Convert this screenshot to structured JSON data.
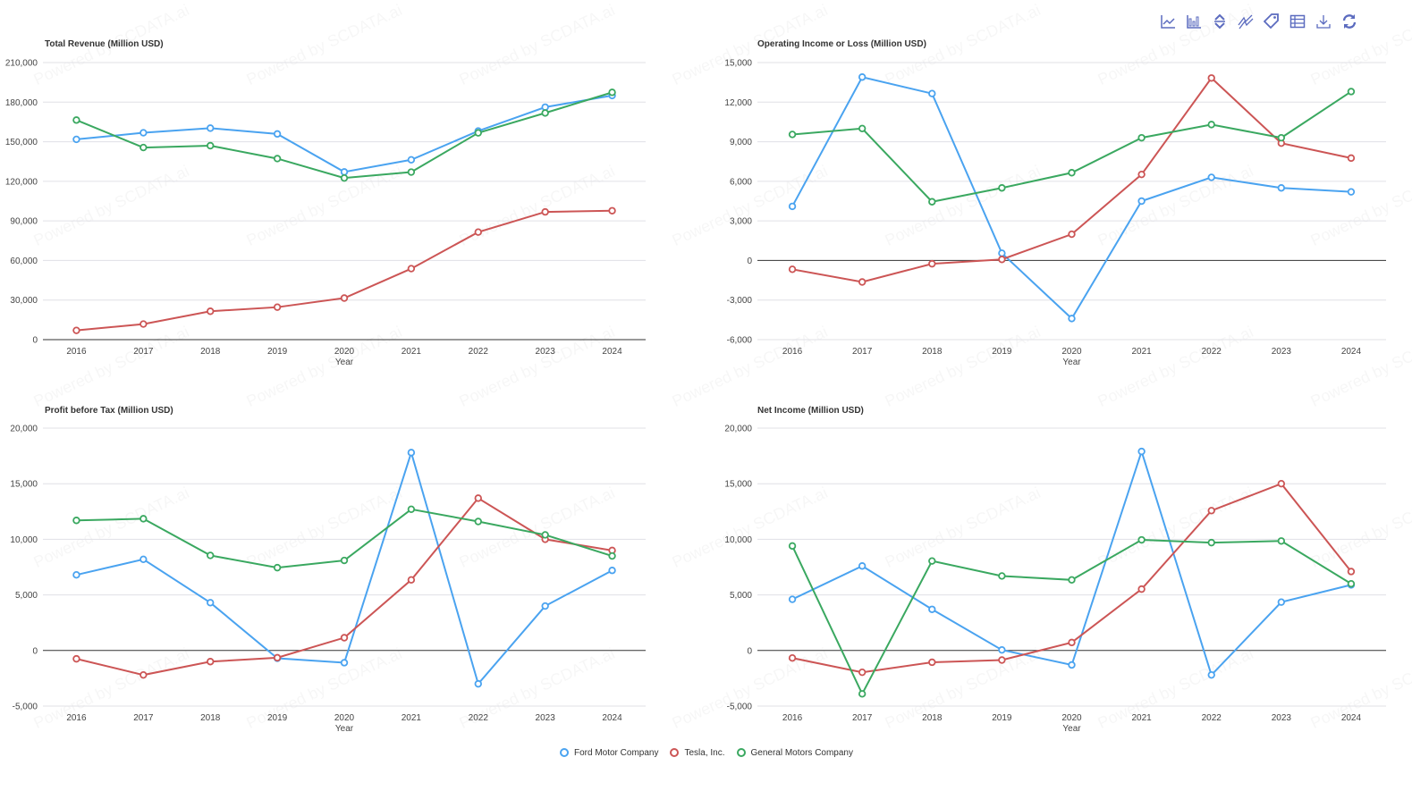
{
  "toolbar": {
    "icons": [
      "line-chart-icon",
      "bar-chart-icon",
      "sort-icon",
      "multi-line-icon",
      "tag-icon",
      "table-icon",
      "download-icon",
      "refresh-icon"
    ],
    "color": "#5b6bbf"
  },
  "watermark": "Powered by SCDATA.ai",
  "legend": [
    {
      "name": "Ford Motor Company",
      "color": "#4aa3f0"
    },
    {
      "name": "Tesla, Inc.",
      "color": "#cc5555"
    },
    {
      "name": "General Motors Company",
      "color": "#3aa860"
    }
  ],
  "chart_data": [
    {
      "type": "line",
      "title": "Total Revenue (Million USD)",
      "xlabel": "Year",
      "ylabel": "",
      "categories": [
        "2016",
        "2017",
        "2018",
        "2019",
        "2020",
        "2021",
        "2022",
        "2023",
        "2024"
      ],
      "ylim": [
        0,
        210000
      ],
      "yticks": [
        0,
        30000,
        60000,
        90000,
        120000,
        150000,
        180000,
        210000
      ],
      "ytick_labels": [
        "0",
        "30,000",
        "60,000",
        "90,000",
        "120,000",
        "150,000",
        "180,000",
        "210,000"
      ],
      "grid": true,
      "legend": "bottom-center",
      "series": [
        {
          "name": "Ford Motor Company",
          "values": [
            151800,
            156800,
            160300,
            155900,
            127100,
            136300,
            158100,
            176200,
            185000
          ]
        },
        {
          "name": "Tesla, Inc.",
          "values": [
            7000,
            11800,
            21500,
            24600,
            31500,
            53800,
            81500,
            96800,
            97700
          ]
        },
        {
          "name": "General Motors Company",
          "values": [
            166400,
            145600,
            147000,
            137200,
            122500,
            127000,
            156700,
            171800,
            187400
          ]
        }
      ]
    },
    {
      "type": "line",
      "title": "Operating Income or Loss (Million USD)",
      "xlabel": "Year",
      "ylabel": "",
      "categories": [
        "2016",
        "2017",
        "2018",
        "2019",
        "2020",
        "2021",
        "2022",
        "2023",
        "2024"
      ],
      "ylim": [
        -6000,
        15000
      ],
      "yticks": [
        -6000,
        -3000,
        0,
        3000,
        6000,
        9000,
        12000,
        15000
      ],
      "ytick_labels": [
        "-6,000",
        "-3,000",
        "0",
        "3,000",
        "6,000",
        "9,000",
        "12,000",
        "15,000"
      ],
      "grid": true,
      "legend": "bottom-center",
      "series": [
        {
          "name": "Ford Motor Company",
          "values": [
            4100,
            13900,
            12650,
            550,
            -4400,
            4500,
            6300,
            5500,
            5200
          ]
        },
        {
          "name": "Tesla, Inc.",
          "values": [
            -670,
            -1630,
            -250,
            80,
            1990,
            6520,
            13830,
            8890,
            7760
          ]
        },
        {
          "name": "General Motors Company",
          "values": [
            9550,
            10000,
            4450,
            5500,
            6650,
            9300,
            10300,
            9300,
            12800
          ]
        }
      ]
    },
    {
      "type": "line",
      "title": "Profit before Tax (Million USD)",
      "xlabel": "Year",
      "ylabel": "",
      "categories": [
        "2016",
        "2017",
        "2018",
        "2019",
        "2020",
        "2021",
        "2022",
        "2023",
        "2024"
      ],
      "ylim": [
        -5000,
        20000
      ],
      "yticks": [
        -5000,
        0,
        5000,
        10000,
        15000,
        20000
      ],
      "ytick_labels": [
        "-5,000",
        "0",
        "5,000",
        "10,000",
        "15,000",
        "20,000"
      ],
      "grid": true,
      "legend": "bottom-center",
      "series": [
        {
          "name": "Ford Motor Company",
          "values": [
            6800,
            8200,
            4300,
            -700,
            -1100,
            17800,
            -3000,
            4000,
            7200
          ]
        },
        {
          "name": "Tesla, Inc.",
          "values": [
            -750,
            -2200,
            -1000,
            -650,
            1150,
            6350,
            13700,
            10000,
            9000
          ]
        },
        {
          "name": "General Motors Company",
          "values": [
            11700,
            11850,
            8550,
            7450,
            8100,
            12700,
            11600,
            10400,
            8500
          ]
        }
      ]
    },
    {
      "type": "line",
      "title": "Net Income (Million USD)",
      "xlabel": "Year",
      "ylabel": "",
      "categories": [
        "2016",
        "2017",
        "2018",
        "2019",
        "2020",
        "2021",
        "2022",
        "2023",
        "2024"
      ],
      "ylim": [
        -5000,
        20000
      ],
      "yticks": [
        -5000,
        0,
        5000,
        10000,
        15000,
        20000
      ],
      "ytick_labels": [
        "-5,000",
        "0",
        "5,000",
        "10,000",
        "15,000",
        "20,000"
      ],
      "grid": true,
      "legend": "bottom-center",
      "series": [
        {
          "name": "Ford Motor Company",
          "values": [
            4600,
            7600,
            3700,
            50,
            -1300,
            17900,
            -2200,
            4350,
            5900
          ]
        },
        {
          "name": "Tesla, Inc.",
          "values": [
            -675,
            -1960,
            -1060,
            -860,
            720,
            5520,
            12580,
            15000,
            7100
          ]
        },
        {
          "name": "General Motors Company",
          "values": [
            9400,
            -3900,
            8050,
            6700,
            6350,
            9950,
            9700,
            9850,
            6000
          ]
        }
      ]
    }
  ]
}
